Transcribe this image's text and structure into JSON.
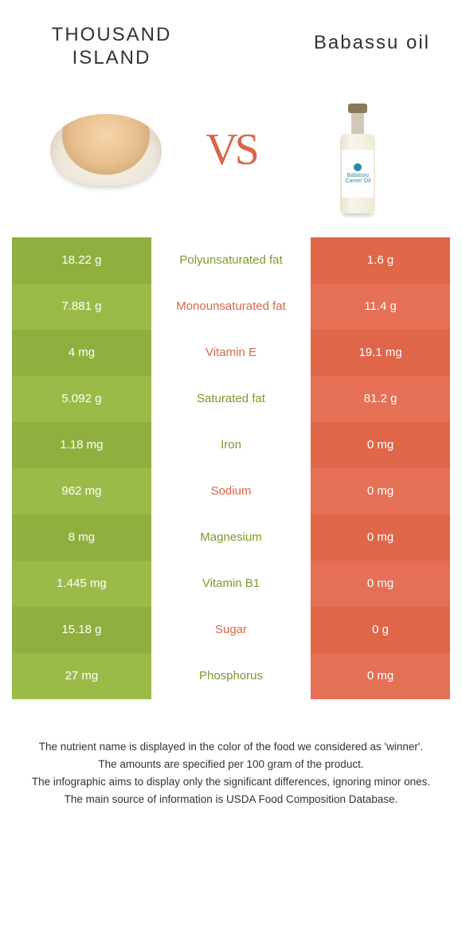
{
  "colors": {
    "green": "#8fb03e",
    "green_alt": "#9bbb48",
    "orange": "#e0664a",
    "orange_alt": "#e57055",
    "orange_text": "#d8674a",
    "green_text": "#7a9a2e"
  },
  "titles": {
    "left": "THOUSAND ISLAND",
    "right": "Babassu oil",
    "vs": "VS"
  },
  "bottle_label": {
    "line1": "Babassu",
    "line2": "Carrier Oil"
  },
  "rows": [
    {
      "left": "18.22 g",
      "label": "Polyunsaturated fat",
      "right": "1.6 g",
      "winner": "left"
    },
    {
      "left": "7.881 g",
      "label": "Monounsaturated fat",
      "right": "11.4 g",
      "winner": "right"
    },
    {
      "left": "4 mg",
      "label": "Vitamin E",
      "right": "19.1 mg",
      "winner": "right"
    },
    {
      "left": "5.092 g",
      "label": "Saturated fat",
      "right": "81.2 g",
      "winner": "left"
    },
    {
      "left": "1.18 mg",
      "label": "Iron",
      "right": "0 mg",
      "winner": "left"
    },
    {
      "left": "962 mg",
      "label": "Sodium",
      "right": "0 mg",
      "winner": "right"
    },
    {
      "left": "8 mg",
      "label": "Magnesium",
      "right": "0 mg",
      "winner": "left"
    },
    {
      "left": "1.445 mg",
      "label": "Vitamin B1",
      "right": "0 mg",
      "winner": "left"
    },
    {
      "left": "15.18 g",
      "label": "Sugar",
      "right": "0 g",
      "winner": "right"
    },
    {
      "left": "27 mg",
      "label": "Phosphorus",
      "right": "0 mg",
      "winner": "left"
    }
  ],
  "footer": [
    "The nutrient name is displayed in the color of the food we considered as 'winner'.",
    "The amounts are specified per 100 gram of the product.",
    "The infographic aims to display only the significant differences, ignoring minor ones.",
    "The main source of information is USDA Food Composition Database."
  ]
}
